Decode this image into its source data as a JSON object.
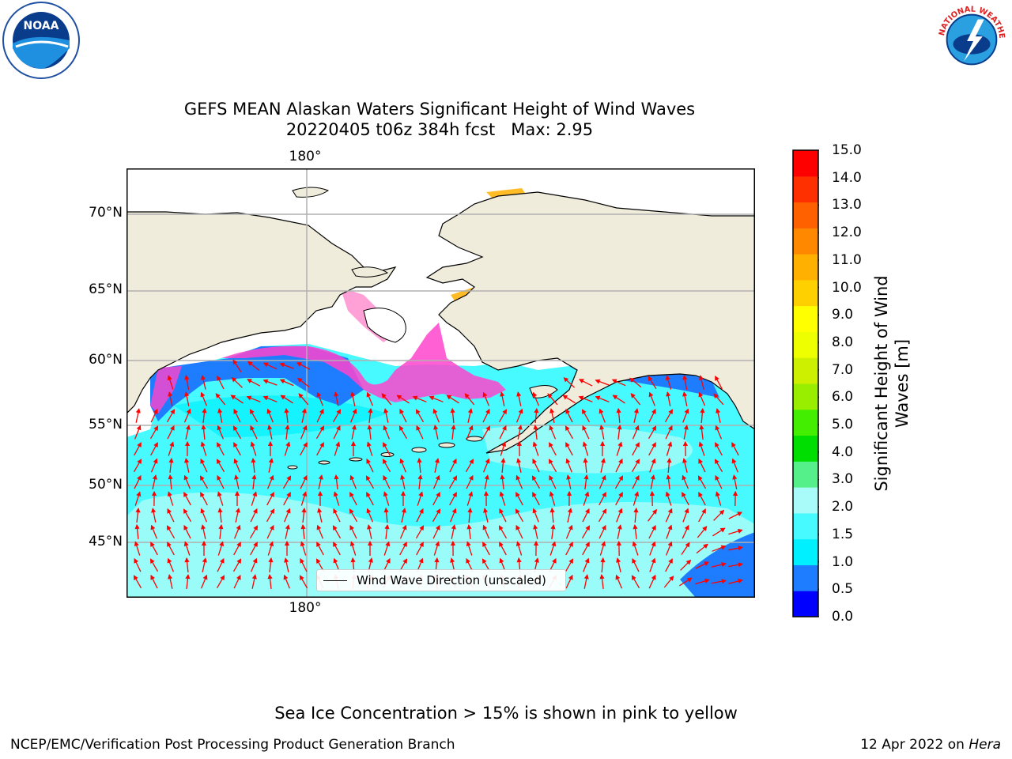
{
  "title_line1": "GEFS MEAN Alaskan Waters Significant Height of Wind Waves",
  "title_line2": "20220405 t06z 384h fcst   Max: 2.95",
  "map": {
    "top_longitude_label": "180°",
    "bottom_longitude_label": "180°",
    "latitude_labels": [
      "70°N",
      "65°N",
      "60°N",
      "55°N",
      "50°N",
      "45°N"
    ],
    "legend_label": "Wind Wave Direction (unscaled)",
    "colors": {
      "land": "#efecdc",
      "ice_free_sea": "#ffffff",
      "wave_0_5_1_0": "#1e7cff",
      "wave_1_0_1_5": "#00f0ff",
      "wave_1_5_2_0": "#47faff",
      "wave_2_0_3_0": "#a8fbf8",
      "arrows": "#ff0000",
      "sea_ice": "#ff44cc",
      "gridlines": "#b0b0b0"
    }
  },
  "colorbar": {
    "title": "Significant Height of Wind Waves [m]",
    "tick_labels": [
      "15.0",
      "14.0",
      "13.0",
      "12.0",
      "11.0",
      "10.0",
      "9.0",
      "8.0",
      "7.0",
      "6.0",
      "5.0",
      "4.0",
      "3.0",
      "2.0",
      "1.5",
      "1.0",
      "0.5",
      "0.0"
    ],
    "colors_bottom_to_top": [
      "#0000ff",
      "#1e7cff",
      "#00f0ff",
      "#47faff",
      "#a8fbf8",
      "#55f08a",
      "#00dd00",
      "#44ee00",
      "#99ee00",
      "#ccf000",
      "#eeff00",
      "#ffff00",
      "#ffd000",
      "#ffb000",
      "#ff8800",
      "#ff6000",
      "#ff3000",
      "#ff0000"
    ]
  },
  "footer_note": "Sea Ice Concentration > 15% is shown in pink to yellow",
  "footer_left": "NCEP/EMC/Verification Post Processing Product Generation Branch",
  "footer_right_date": "12 Apr 2022 on ",
  "footer_right_host": "Hera",
  "logos": {
    "noaa_text": "NOAA",
    "nws_text": "NATIONAL WEATHER SERVICE"
  }
}
